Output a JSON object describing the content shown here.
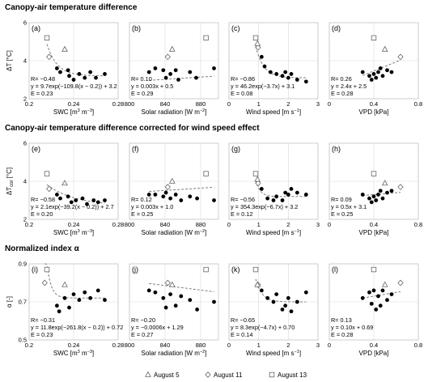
{
  "sections": [
    {
      "title": "Canopy-air temperature difference"
    },
    {
      "title": "Canopy-air temperature difference corrected for wind speed effect"
    },
    {
      "title": "Normalized index α"
    }
  ],
  "x_axes": [
    {
      "label": "SWC [m",
      "label_sup1": "3",
      "label_mid": " m",
      "label_sup2": "−3",
      "label_end": "]",
      "ticks": [
        "0.2",
        "0.24",
        "0.28"
      ],
      "ticks_num": [
        0.2,
        0.24,
        0.28
      ],
      "range": [
        0.2,
        0.28
      ]
    },
    {
      "label": "Solar radiation [W m",
      "label_sup1": "−2",
      "label_mid": "",
      "label_sup2": "",
      "label_end": "]",
      "ticks": [
        "800",
        "840",
        "880"
      ],
      "ticks_num": [
        800,
        840,
        880
      ],
      "range": [
        800,
        900
      ]
    },
    {
      "label": "Wind speed [m s",
      "label_sup1": "−1",
      "label_mid": "",
      "label_sup2": "",
      "label_end": "]",
      "ticks": [
        "0",
        "1",
        "2",
        "3"
      ],
      "ticks_num": [
        0,
        1,
        2,
        3
      ],
      "range": [
        0,
        3
      ]
    },
    {
      "label": "VPD [kPa]",
      "label_sup1": "",
      "label_mid": "",
      "label_sup2": "",
      "label_end": "",
      "ticks": [
        "0",
        "0.4",
        "0.8"
      ],
      "ticks_num": [
        0,
        0.4,
        0.8
      ],
      "range": [
        0,
        0.8
      ]
    }
  ],
  "y_axes": [
    {
      "label_main": "ΔT [°C]",
      "label_sub": "",
      "label_rest": "",
      "ticks": [
        "2",
        "4",
        "6"
      ],
      "ticks_num": [
        2,
        4,
        6
      ],
      "range": [
        2,
        6
      ]
    },
    {
      "label_main": "ΔT",
      "label_sub": "cor",
      "label_rest": " [°C]",
      "ticks": [
        "2",
        "4",
        "6"
      ],
      "ticks_num": [
        2,
        4,
        6
      ],
      "range": [
        2,
        6
      ]
    },
    {
      "label_main": "α [-]",
      "label_sub": "",
      "label_rest": "",
      "ticks": [
        "0.5",
        "0.7",
        "0.9"
      ],
      "ticks_num": [
        0.5,
        0.7,
        0.9
      ],
      "range": [
        0.5,
        0.9
      ]
    }
  ],
  "legend": [
    {
      "symbol": "triangle",
      "label": "August 5"
    },
    {
      "symbol": "diamond",
      "label": "August 11"
    },
    {
      "symbol": "square",
      "label": "August 13"
    }
  ],
  "chart_data": [
    {
      "type": "scatter",
      "panel": "(a)",
      "row": 0,
      "col": 0,
      "annotation": [
        "R= −0.48",
        "y = 9.7exp(−109.8(x − 0.2)) + 3.2",
        "E = 0.23"
      ],
      "fit": {
        "kind": "exp",
        "a": 9.7,
        "b": -109.8,
        "x0": 0.2,
        "c": 3.2
      },
      "open_points": [
        {
          "x": 0.218,
          "y": 4.2,
          "marker": "diamond"
        },
        {
          "x": 0.232,
          "y": 4.6,
          "marker": "triangle"
        },
        {
          "x": 0.216,
          "y": 5.2,
          "marker": "square"
        }
      ],
      "points": [
        {
          "x": 0.225,
          "y": 3.6
        },
        {
          "x": 0.228,
          "y": 3.4
        },
        {
          "x": 0.235,
          "y": 3.5
        },
        {
          "x": 0.236,
          "y": 3.2
        },
        {
          "x": 0.24,
          "y": 3.0
        },
        {
          "x": 0.245,
          "y": 3.3
        },
        {
          "x": 0.25,
          "y": 3.1
        },
        {
          "x": 0.255,
          "y": 3.4
        },
        {
          "x": 0.26,
          "y": 3.1
        },
        {
          "x": 0.268,
          "y": 3.3
        }
      ]
    },
    {
      "type": "scatter",
      "panel": "(b)",
      "row": 0,
      "col": 1,
      "annotation": [
        "R= 0.10",
        "y = 0.003x + 0.5",
        "E = 0.29"
      ],
      "fit": {
        "kind": "lin",
        "m": 0.003,
        "c": 0.5
      },
      "open_points": [
        {
          "x": 843,
          "y": 4.2,
          "marker": "diamond"
        },
        {
          "x": 848,
          "y": 4.6,
          "marker": "triangle"
        },
        {
          "x": 886,
          "y": 5.2,
          "marker": "square"
        }
      ],
      "points": [
        {
          "x": 822,
          "y": 3.4
        },
        {
          "x": 829,
          "y": 3.6
        },
        {
          "x": 838,
          "y": 3.5
        },
        {
          "x": 841,
          "y": 3.1
        },
        {
          "x": 846,
          "y": 3.3
        },
        {
          "x": 852,
          "y": 3.5
        },
        {
          "x": 855,
          "y": 3.0
        },
        {
          "x": 868,
          "y": 3.4
        },
        {
          "x": 875,
          "y": 3.1
        },
        {
          "x": 895,
          "y": 3.6
        }
      ]
    },
    {
      "type": "scatter",
      "panel": "(c)",
      "row": 0,
      "col": 2,
      "annotation": [
        "R= −0.86",
        "y = 46.2exp(−3.7x) + 3.1",
        "E = 0.08"
      ],
      "fit": {
        "kind": "exp",
        "a": 46.2,
        "b": -3.7,
        "x0": 0,
        "c": 3.1
      },
      "open_points": [
        {
          "x": 0.98,
          "y": 4.7,
          "marker": "diamond"
        },
        {
          "x": 0.96,
          "y": 4.9,
          "marker": "triangle"
        },
        {
          "x": 0.9,
          "y": 5.2,
          "marker": "square"
        }
      ],
      "points": [
        {
          "x": 1.1,
          "y": 4.2
        },
        {
          "x": 1.2,
          "y": 3.7
        },
        {
          "x": 1.4,
          "y": 3.4
        },
        {
          "x": 1.6,
          "y": 3.3
        },
        {
          "x": 1.8,
          "y": 3.2
        },
        {
          "x": 1.9,
          "y": 3.4
        },
        {
          "x": 2.0,
          "y": 3.1
        },
        {
          "x": 2.1,
          "y": 3.3
        },
        {
          "x": 2.3,
          "y": 3.0
        },
        {
          "x": 2.6,
          "y": 2.9
        }
      ]
    },
    {
      "type": "scatter",
      "panel": "(d)",
      "row": 0,
      "col": 3,
      "annotation": [
        "R= 0.26",
        "y = 2.4x + 2.5",
        "E = 0.28"
      ],
      "fit": {
        "kind": "lin",
        "m": 2.4,
        "c": 2.5
      },
      "open_points": [
        {
          "x": 0.64,
          "y": 4.2,
          "marker": "diamond"
        },
        {
          "x": 0.5,
          "y": 4.6,
          "marker": "triangle"
        },
        {
          "x": 0.4,
          "y": 5.2,
          "marker": "square"
        }
      ],
      "points": [
        {
          "x": 0.3,
          "y": 3.4
        },
        {
          "x": 0.36,
          "y": 3.2
        },
        {
          "x": 0.38,
          "y": 3.0
        },
        {
          "x": 0.4,
          "y": 3.3
        },
        {
          "x": 0.42,
          "y": 3.1
        },
        {
          "x": 0.44,
          "y": 3.4
        },
        {
          "x": 0.46,
          "y": 3.6
        },
        {
          "x": 0.48,
          "y": 3.2
        },
        {
          "x": 0.52,
          "y": 3.5
        },
        {
          "x": 0.56,
          "y": 3.4
        }
      ]
    },
    {
      "type": "scatter",
      "panel": "(e)",
      "row": 1,
      "col": 0,
      "annotation": [
        "R= −0.58",
        "y = 2.1exp(−39.2(x − 0.2)) + 2.7",
        "E = 0.20"
      ],
      "fit": {
        "kind": "exp",
        "a": 2.1,
        "b": -39.2,
        "x0": 0.2,
        "c": 2.7
      },
      "open_points": [
        {
          "x": 0.218,
          "y": 3.6,
          "marker": "diamond"
        },
        {
          "x": 0.232,
          "y": 3.9,
          "marker": "triangle"
        },
        {
          "x": 0.216,
          "y": 4.4,
          "marker": "square"
        }
      ],
      "points": [
        {
          "x": 0.225,
          "y": 3.3
        },
        {
          "x": 0.228,
          "y": 3.1
        },
        {
          "x": 0.235,
          "y": 3.2
        },
        {
          "x": 0.238,
          "y": 2.9
        },
        {
          "x": 0.242,
          "y": 3.0
        },
        {
          "x": 0.248,
          "y": 3.1
        },
        {
          "x": 0.252,
          "y": 2.8
        },
        {
          "x": 0.258,
          "y": 3.0
        },
        {
          "x": 0.262,
          "y": 2.9
        },
        {
          "x": 0.268,
          "y": 3.0
        }
      ]
    },
    {
      "type": "scatter",
      "panel": "(f)",
      "row": 1,
      "col": 1,
      "annotation": [
        "R= 0.12",
        "y = 0.003x + 1.0",
        "E = 0.25"
      ],
      "fit": {
        "kind": "lin",
        "m": 0.003,
        "c": 1.0
      },
      "open_points": [
        {
          "x": 843,
          "y": 3.7,
          "marker": "diamond"
        },
        {
          "x": 848,
          "y": 4.0,
          "marker": "triangle"
        },
        {
          "x": 886,
          "y": 4.4,
          "marker": "square"
        }
      ],
      "points": [
        {
          "x": 822,
          "y": 3.3
        },
        {
          "x": 829,
          "y": 3.3
        },
        {
          "x": 838,
          "y": 3.2
        },
        {
          "x": 841,
          "y": 3.4
        },
        {
          "x": 846,
          "y": 3.1
        },
        {
          "x": 852,
          "y": 3.3
        },
        {
          "x": 858,
          "y": 3.0
        },
        {
          "x": 868,
          "y": 3.2
        },
        {
          "x": 876,
          "y": 3.1
        },
        {
          "x": 895,
          "y": 3.0
        }
      ]
    },
    {
      "type": "scatter",
      "panel": "(g)",
      "row": 1,
      "col": 2,
      "annotation": [
        "R= −0.56",
        "y = 354.3exp(−6.7x) + 3.2",
        "E = 0.12"
      ],
      "fit": {
        "kind": "exp",
        "a": 354.3,
        "b": -6.7,
        "x0": 0,
        "c": 3.2
      },
      "open_points": [
        {
          "x": 0.98,
          "y": 3.9,
          "marker": "diamond"
        },
        {
          "x": 0.96,
          "y": 4.1,
          "marker": "triangle"
        },
        {
          "x": 0.9,
          "y": 4.4,
          "marker": "square"
        }
      ],
      "points": [
        {
          "x": 1.1,
          "y": 3.6
        },
        {
          "x": 1.3,
          "y": 3.1
        },
        {
          "x": 1.5,
          "y": 3.0
        },
        {
          "x": 1.6,
          "y": 3.2
        },
        {
          "x": 1.8,
          "y": 3.0
        },
        {
          "x": 1.9,
          "y": 3.4
        },
        {
          "x": 2.0,
          "y": 3.3
        },
        {
          "x": 2.1,
          "y": 3.6
        },
        {
          "x": 2.3,
          "y": 3.4
        },
        {
          "x": 2.6,
          "y": 3.3
        }
      ]
    },
    {
      "type": "scatter",
      "panel": "(h)",
      "row": 1,
      "col": 3,
      "annotation": [
        "R= 0.09",
        "y = 0.5x + 3.1",
        "E = 0.25"
      ],
      "fit": {
        "kind": "lin",
        "m": 0.5,
        "c": 3.1
      },
      "open_points": [
        {
          "x": 0.64,
          "y": 3.7,
          "marker": "diamond"
        },
        {
          "x": 0.5,
          "y": 3.9,
          "marker": "triangle"
        },
        {
          "x": 0.4,
          "y": 4.4,
          "marker": "square"
        }
      ],
      "points": [
        {
          "x": 0.3,
          "y": 3.3
        },
        {
          "x": 0.36,
          "y": 3.1
        },
        {
          "x": 0.38,
          "y": 2.9
        },
        {
          "x": 0.4,
          "y": 3.2
        },
        {
          "x": 0.42,
          "y": 3.0
        },
        {
          "x": 0.44,
          "y": 3.3
        },
        {
          "x": 0.46,
          "y": 3.5
        },
        {
          "x": 0.48,
          "y": 3.1
        },
        {
          "x": 0.52,
          "y": 3.4
        },
        {
          "x": 0.56,
          "y": 3.5
        }
      ]
    },
    {
      "type": "scatter",
      "panel": "(i)",
      "row": 2,
      "col": 0,
      "annotation": [
        "R= −0.31",
        "y = 11.8exp(−261.8(x − 0.2)) + 0.72",
        "E = 0.23"
      ],
      "fit": {
        "kind": "exp",
        "a": 11.8,
        "b": -261.8,
        "x0": 0.2,
        "c": 0.72
      },
      "open_points": [
        {
          "x": 0.214,
          "y": 0.8,
          "marker": "diamond"
        },
        {
          "x": 0.232,
          "y": 0.79,
          "marker": "triangle"
        },
        {
          "x": 0.216,
          "y": 0.87,
          "marker": "square"
        }
      ],
      "points": [
        {
          "x": 0.225,
          "y": 0.68
        },
        {
          "x": 0.227,
          "y": 0.65
        },
        {
          "x": 0.232,
          "y": 0.72
        },
        {
          "x": 0.236,
          "y": 0.67
        },
        {
          "x": 0.24,
          "y": 0.74
        },
        {
          "x": 0.245,
          "y": 0.71
        },
        {
          "x": 0.25,
          "y": 0.75
        },
        {
          "x": 0.255,
          "y": 0.72
        },
        {
          "x": 0.262,
          "y": 0.76
        },
        {
          "x": 0.268,
          "y": 0.71
        }
      ]
    },
    {
      "type": "scatter",
      "panel": "(j)",
      "row": 2,
      "col": 1,
      "annotation": [
        "R= −0.20",
        "y = −0.0006x + 1.29",
        "E = 0.27"
      ],
      "fit": {
        "kind": "lin",
        "m": -0.0006,
        "c": 1.29
      },
      "open_points": [
        {
          "x": 843,
          "y": 0.8,
          "marker": "diamond"
        },
        {
          "x": 848,
          "y": 0.79,
          "marker": "triangle"
        },
        {
          "x": 886,
          "y": 0.87,
          "marker": "square"
        }
      ],
      "points": [
        {
          "x": 822,
          "y": 0.76
        },
        {
          "x": 829,
          "y": 0.75
        },
        {
          "x": 838,
          "y": 0.72
        },
        {
          "x": 841,
          "y": 0.67
        },
        {
          "x": 846,
          "y": 0.74
        },
        {
          "x": 852,
          "y": 0.68
        },
        {
          "x": 858,
          "y": 0.73
        },
        {
          "x": 868,
          "y": 0.71
        },
        {
          "x": 876,
          "y": 0.66
        },
        {
          "x": 895,
          "y": 0.7
        }
      ]
    },
    {
      "type": "scatter",
      "panel": "(k)",
      "row": 2,
      "col": 2,
      "annotation": [
        "R= −0.65",
        "y = 8.3exp(−4.7x) + 0.70",
        "E = 0.14"
      ],
      "fit": {
        "kind": "exp",
        "a": 8.3,
        "b": -4.7,
        "x0": 0,
        "c": 0.7
      },
      "open_points": [
        {
          "x": 0.98,
          "y": 0.79,
          "marker": "diamond"
        },
        {
          "x": 0.96,
          "y": 0.79,
          "marker": "triangle"
        },
        {
          "x": 0.9,
          "y": 0.87,
          "marker": "square"
        }
      ],
      "points": [
        {
          "x": 1.1,
          "y": 0.76
        },
        {
          "x": 1.3,
          "y": 0.72
        },
        {
          "x": 1.5,
          "y": 0.7
        },
        {
          "x": 1.6,
          "y": 0.74
        },
        {
          "x": 1.8,
          "y": 0.66
        },
        {
          "x": 1.9,
          "y": 0.68
        },
        {
          "x": 2.0,
          "y": 0.72
        },
        {
          "x": 2.1,
          "y": 0.65
        },
        {
          "x": 2.3,
          "y": 0.7
        },
        {
          "x": 2.6,
          "y": 0.75
        }
      ]
    },
    {
      "type": "scatter",
      "panel": "(l)",
      "row": 2,
      "col": 3,
      "annotation": [
        "R= 0.13",
        "y = 0.10x + 0.69",
        "E = 0.28"
      ],
      "fit": {
        "kind": "lin",
        "m": 0.1,
        "c": 0.69
      },
      "open_points": [
        {
          "x": 0.64,
          "y": 0.8,
          "marker": "diamond"
        },
        {
          "x": 0.5,
          "y": 0.79,
          "marker": "triangle"
        },
        {
          "x": 0.4,
          "y": 0.87,
          "marker": "square"
        }
      ],
      "points": [
        {
          "x": 0.3,
          "y": 0.72
        },
        {
          "x": 0.36,
          "y": 0.75
        },
        {
          "x": 0.38,
          "y": 0.69
        },
        {
          "x": 0.4,
          "y": 0.76
        },
        {
          "x": 0.42,
          "y": 0.66
        },
        {
          "x": 0.44,
          "y": 0.73
        },
        {
          "x": 0.46,
          "y": 0.68
        },
        {
          "x": 0.48,
          "y": 0.76
        },
        {
          "x": 0.52,
          "y": 0.71
        },
        {
          "x": 0.56,
          "y": 0.74
        }
      ]
    }
  ]
}
